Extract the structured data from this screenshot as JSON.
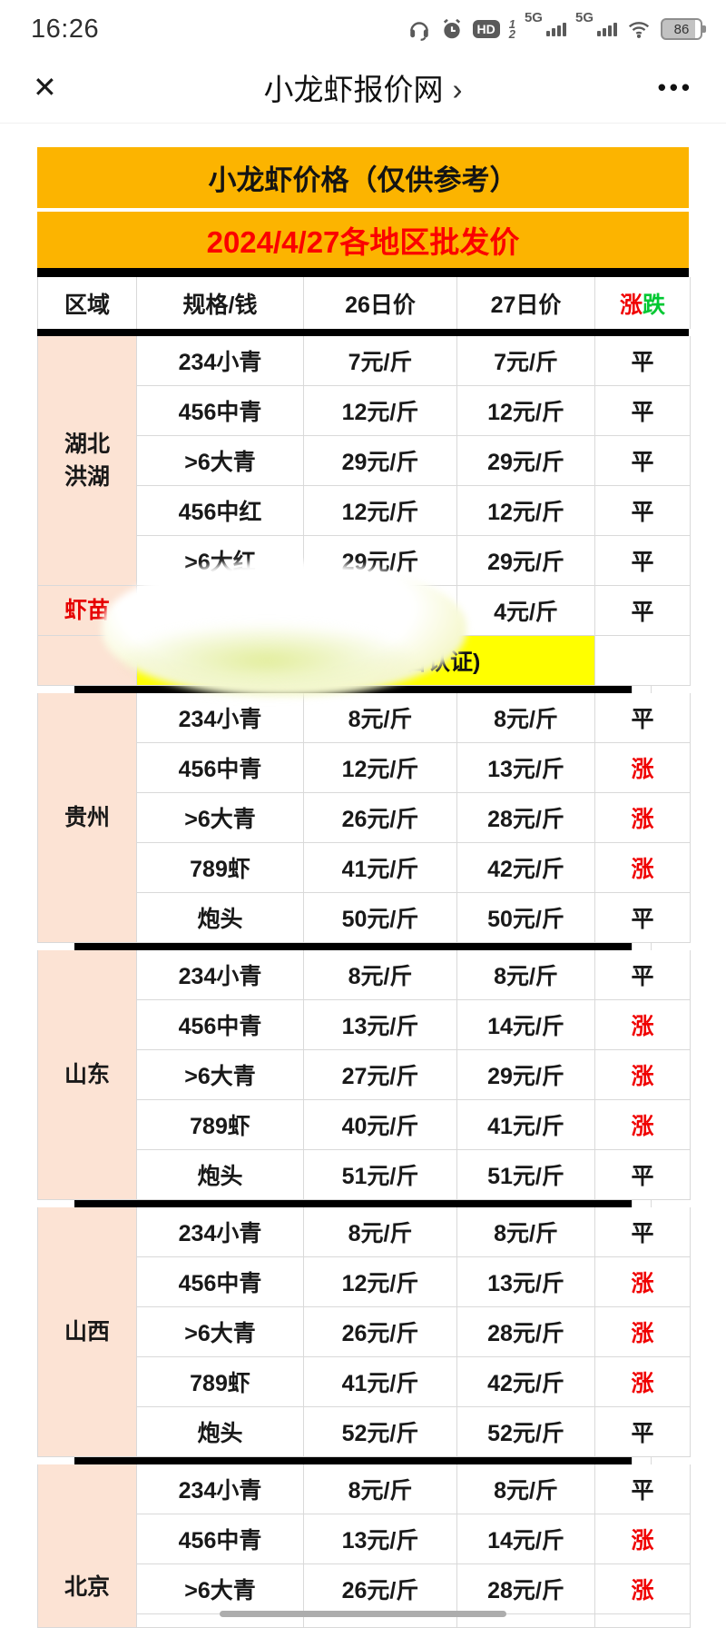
{
  "status_bar": {
    "time": "16:26",
    "hd": "HD",
    "hd_fraction_top": "1",
    "hd_fraction_bottom": "2",
    "network1": "5G",
    "network2": "5G",
    "battery": "86"
  },
  "nav": {
    "close_glyph": "✕",
    "title": "小龙虾报价网",
    "chevron": "›",
    "more_glyph": "•••"
  },
  "banner": {
    "line1": "小龙虾价格（仅供参考）",
    "line2": "2024/4/27各地区批发价"
  },
  "colors": {
    "banner_bg": "#FCB400",
    "banner_line2_red": "#FB0000",
    "region_peach": "#FCE3D4",
    "ad_yellow": "#FFFF00",
    "rise_red": "#F00000",
    "fall_green": "#00C832",
    "seedling_red": "#E60000"
  },
  "table": {
    "header": {
      "region": "区域",
      "spec": "规格/钱",
      "d26": "26日价",
      "d27": "27日价",
      "rise": "涨",
      "fall": "跌"
    },
    "sections": [
      {
        "region_lines": [
          "湖北",
          "洪湖"
        ],
        "rows": [
          {
            "spec": "234小青",
            "p26": "7元/斤",
            "p27": "7元/斤",
            "trend": "平"
          },
          {
            "spec": "456中青",
            "p26": "12元/斤",
            "p27": "12元/斤",
            "trend": "平"
          },
          {
            "spec": ">6大青",
            "p26": "29元/斤",
            "p27": "29元/斤",
            "trend": "平"
          },
          {
            "spec": "456中红",
            "p26": "12元/斤",
            "p27": "12元/斤",
            "trend": "平"
          },
          {
            "spec": ">6大红",
            "p26": "29元/斤",
            "p27": "29元/斤",
            "trend": "平"
          }
        ],
        "seedling": {
          "region": "虾苗",
          "spec": "",
          "p26": "",
          "p27": "4元/斤",
          "trend": "平"
        },
        "ad": {
          "visible_text": "台认证)"
        }
      },
      {
        "region_lines": [
          "贵州"
        ],
        "rows": [
          {
            "spec": "234小青",
            "p26": "8元/斤",
            "p27": "8元/斤",
            "trend": "平"
          },
          {
            "spec": "456中青",
            "p26": "12元/斤",
            "p27": "13元/斤",
            "trend": "涨"
          },
          {
            "spec": ">6大青",
            "p26": "26元/斤",
            "p27": "28元/斤",
            "trend": "涨"
          },
          {
            "spec": "789虾",
            "p26": "41元/斤",
            "p27": "42元/斤",
            "trend": "涨"
          },
          {
            "spec": "炮头",
            "p26": "50元/斤",
            "p27": "50元/斤",
            "trend": "平"
          }
        ]
      },
      {
        "region_lines": [
          "山东"
        ],
        "rows": [
          {
            "spec": "234小青",
            "p26": "8元/斤",
            "p27": "8元/斤",
            "trend": "平"
          },
          {
            "spec": "456中青",
            "p26": "13元/斤",
            "p27": "14元/斤",
            "trend": "涨"
          },
          {
            "spec": ">6大青",
            "p26": "27元/斤",
            "p27": "29元/斤",
            "trend": "涨"
          },
          {
            "spec": "789虾",
            "p26": "40元/斤",
            "p27": "41元/斤",
            "trend": "涨"
          },
          {
            "spec": "炮头",
            "p26": "51元/斤",
            "p27": "51元/斤",
            "trend": "平"
          }
        ]
      },
      {
        "region_lines": [
          "山西"
        ],
        "rows": [
          {
            "spec": "234小青",
            "p26": "8元/斤",
            "p27": "8元/斤",
            "trend": "平"
          },
          {
            "spec": "456中青",
            "p26": "12元/斤",
            "p27": "13元/斤",
            "trend": "涨"
          },
          {
            "spec": ">6大青",
            "p26": "26元/斤",
            "p27": "28元/斤",
            "trend": "涨"
          },
          {
            "spec": "789虾",
            "p26": "41元/斤",
            "p27": "42元/斤",
            "trend": "涨"
          },
          {
            "spec": "炮头",
            "p26": "52元/斤",
            "p27": "52元/斤",
            "trend": "平"
          }
        ]
      },
      {
        "region_lines": [
          "北京"
        ],
        "partial": true,
        "rows": [
          {
            "spec": "234小青",
            "p26": "8元/斤",
            "p27": "8元/斤",
            "trend": "平"
          },
          {
            "spec": "456中青",
            "p26": "13元/斤",
            "p27": "14元/斤",
            "trend": "涨"
          },
          {
            "spec": ">6大青",
            "p26": "26元/斤",
            "p27": "28元/斤",
            "trend": "涨"
          },
          {
            "spec": "",
            "p26": "",
            "p27": "",
            "trend": ""
          }
        ]
      }
    ]
  }
}
